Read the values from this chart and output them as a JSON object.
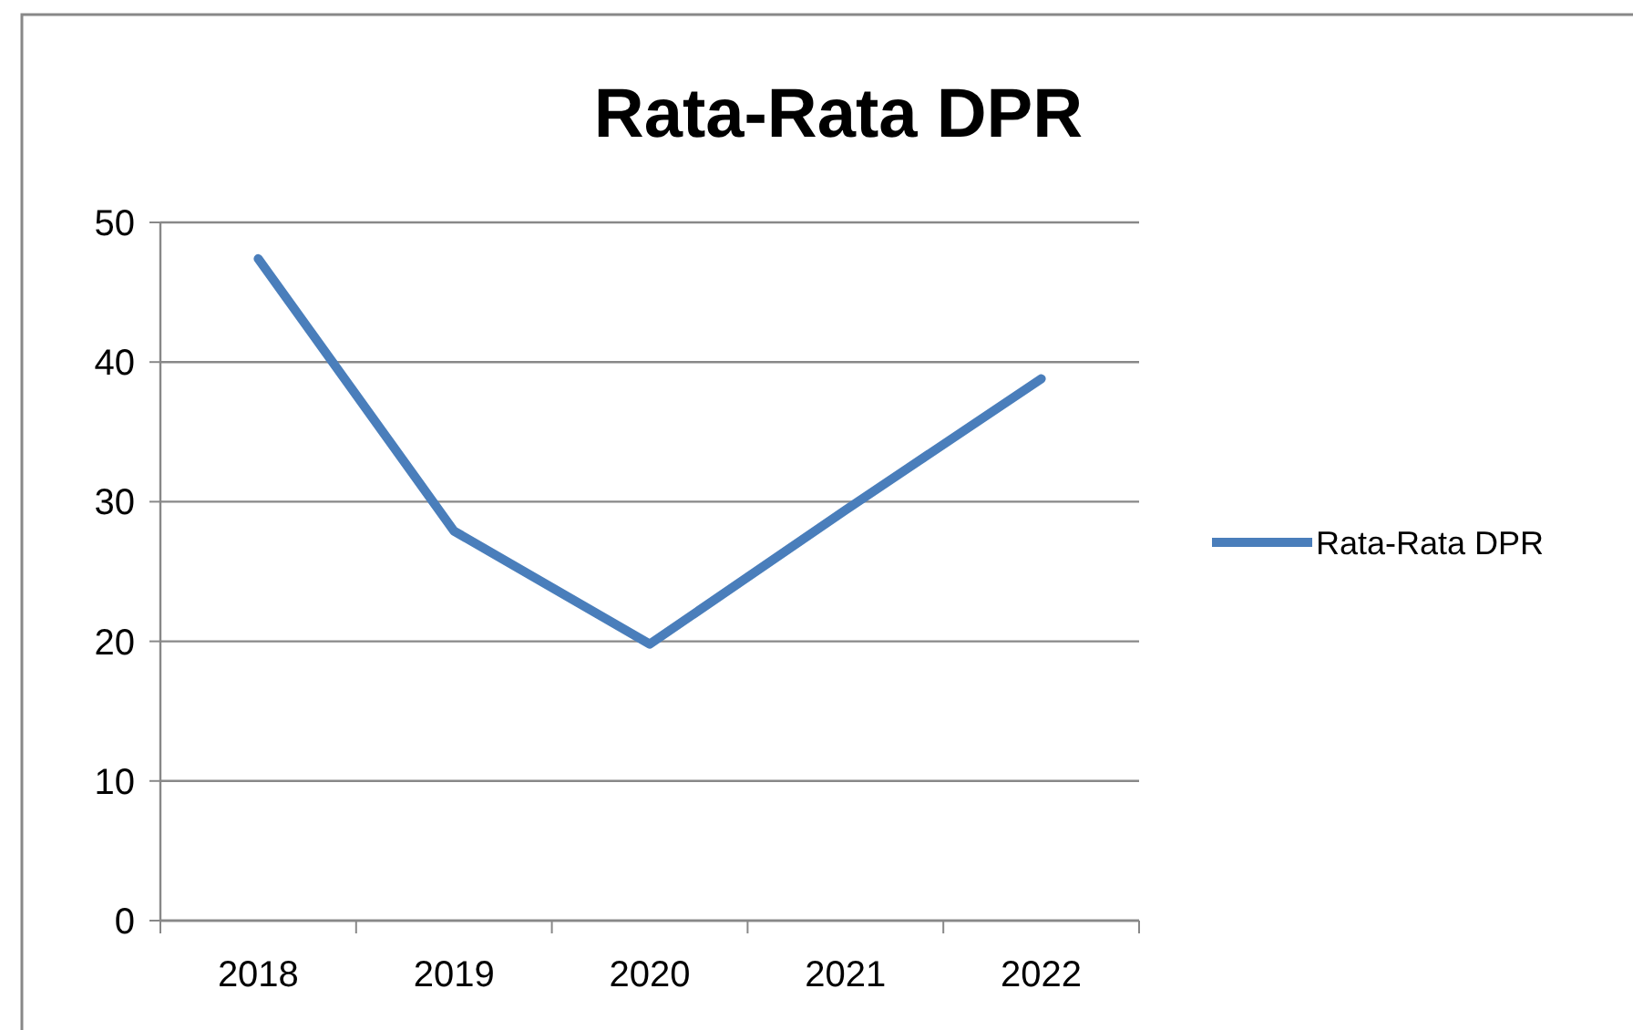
{
  "chart_data": {
    "type": "line",
    "title": "Rata-Rata DPR",
    "categories": [
      "2018",
      "2019",
      "2020",
      "2021",
      "2022"
    ],
    "series": [
      {
        "name": "Rata-Rata DPR",
        "color": "#4a7ebb",
        "values": [
          47.4,
          27.9,
          19.8,
          29.4,
          38.8
        ]
      }
    ],
    "ylim": [
      0,
      50
    ],
    "yticks": [
      0,
      10,
      20,
      30,
      40,
      50
    ],
    "grid": "y",
    "legend": "right",
    "marker": "none",
    "line_style": "solid"
  }
}
